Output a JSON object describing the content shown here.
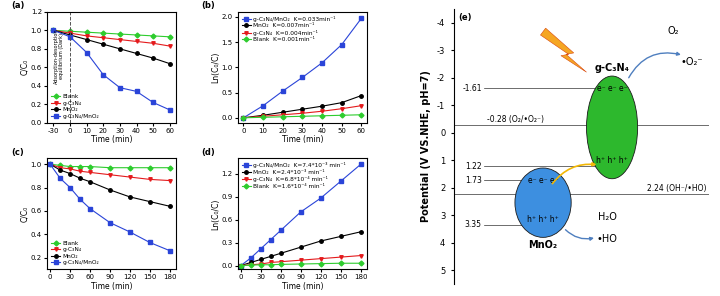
{
  "chart_data": [
    {
      "type": "line",
      "panel_label": "(a)",
      "x_label": "Time (min)",
      "y_label": "C/C₀",
      "categories": [
        "-30",
        "0",
        "10",
        "20",
        "30",
        "40",
        "50",
        "60"
      ],
      "ylim": [
        0,
        1.2
      ],
      "yticks": [
        {
          "value": 0,
          "label": "0.0"
        },
        0.2,
        0.4,
        0.6,
        0.8,
        {
          "value": 1,
          "label": "1.0"
        },
        1.2
      ],
      "legend": "lower left",
      "reference_line": {
        "x": "0",
        "line_style": "dashed",
        "text": "Adsorption-desorption\nequilibrium (Dark)"
      },
      "series": [
        {
          "name": "Blank",
          "color": "#2ecc2e",
          "marker": "diamond",
          "values": [
            1.0,
            0.99,
            0.98,
            0.97,
            0.96,
            0.95,
            0.94,
            0.93
          ]
        },
        {
          "name": "g-C₃N₄",
          "color": "#e41a1c",
          "marker": "triangle_down",
          "values": [
            1.0,
            0.97,
            0.94,
            0.92,
            0.9,
            0.88,
            0.86,
            0.83
          ]
        },
        {
          "name": "MnO₂",
          "color": "#000000",
          "marker": "circle",
          "values": [
            1.0,
            0.95,
            0.9,
            0.85,
            0.8,
            0.75,
            0.7,
            0.64
          ]
        },
        {
          "name": "g-C₃N₄/MnO₂",
          "color": "#2a44d8",
          "marker": "square",
          "values": [
            1.0,
            0.93,
            0.76,
            0.52,
            0.38,
            0.34,
            0.22,
            0.14
          ]
        }
      ]
    },
    {
      "type": "line",
      "panel_label": "(b)",
      "x_label": "Time (min)",
      "y_label": "Ln(C₀/C)",
      "x": [
        0,
        10,
        20,
        30,
        40,
        50,
        60
      ],
      "xlim": [
        -3,
        63
      ],
      "xticks": [
        0,
        10,
        20,
        30,
        40,
        50,
        60
      ],
      "ylim": [
        -0.1,
        2.1
      ],
      "yticks": [
        {
          "value": 0,
          "label": "0.0"
        },
        0.5,
        {
          "value": 1,
          "label": "1.0"
        },
        1.5,
        {
          "value": 2,
          "label": "2.0"
        }
      ],
      "legend": "upper left",
      "series": [
        {
          "name": "g-C₃N₄/MnO₂  K=0.033min⁻¹",
          "color": "#2a44d8",
          "marker": "square",
          "values": [
            0,
            0.24,
            0.53,
            0.8,
            1.09,
            1.45,
            1.97
          ]
        },
        {
          "name": "MnO₂  K=0.007min⁻¹",
          "color": "#000000",
          "marker": "circle",
          "values": [
            0,
            0.05,
            0.11,
            0.17,
            0.23,
            0.3,
            0.44
          ]
        },
        {
          "name": "g-C₃N₄  K=0.004min⁻¹",
          "color": "#e41a1c",
          "marker": "triangle_down",
          "values": [
            0,
            0.03,
            0.06,
            0.09,
            0.13,
            0.18,
            0.24
          ]
        },
        {
          "name": "Blank  K=0.001min⁻¹",
          "color": "#2ecc2e",
          "marker": "diamond",
          "values": [
            0,
            0.01,
            0.02,
            0.03,
            0.04,
            0.05,
            0.06
          ]
        }
      ]
    },
    {
      "type": "line",
      "panel_label": "(c)",
      "x_label": "Time (min)",
      "y_label": "C/C₀",
      "x": [
        0,
        15,
        30,
        45,
        60,
        90,
        120,
        150,
        180
      ],
      "xlim": [
        -5,
        190
      ],
      "xticks": [
        0,
        30,
        60,
        90,
        120,
        150,
        180
      ],
      "ylim": [
        0.1,
        1.05
      ],
      "yticks": [
        0.2,
        0.4,
        0.6,
        0.8,
        {
          "value": 1,
          "label": "1.0"
        }
      ],
      "legend": "lower left",
      "series": [
        {
          "name": "Blank",
          "color": "#2ecc2e",
          "marker": "diamond",
          "values": [
            1.0,
            0.99,
            0.98,
            0.98,
            0.98,
            0.97,
            0.97,
            0.97,
            0.97
          ]
        },
        {
          "name": "g-C₃N₄",
          "color": "#e41a1c",
          "marker": "triangle_down",
          "values": [
            1.0,
            0.97,
            0.96,
            0.94,
            0.93,
            0.91,
            0.89,
            0.87,
            0.86
          ]
        },
        {
          "name": "MnO₂",
          "color": "#000000",
          "marker": "circle",
          "values": [
            1.0,
            0.95,
            0.92,
            0.88,
            0.85,
            0.78,
            0.72,
            0.68,
            0.64
          ]
        },
        {
          "name": "g-C₃N₄/MnO₂",
          "color": "#2a44d8",
          "marker": "square",
          "values": [
            1.0,
            0.88,
            0.8,
            0.7,
            0.62,
            0.5,
            0.42,
            0.33,
            0.26
          ]
        }
      ]
    },
    {
      "type": "line",
      "panel_label": "(d)",
      "x_label": "Time (min)",
      "y_label": "Ln(C₀/C)",
      "x": [
        0,
        15,
        30,
        45,
        60,
        90,
        120,
        150,
        180
      ],
      "xlim": [
        -5,
        190
      ],
      "xticks": [
        0,
        30,
        60,
        90,
        120,
        150,
        180
      ],
      "ylim": [
        -0.05,
        1.4
      ],
      "yticks": [
        {
          "value": 0,
          "label": "0.0"
        },
        0.3,
        0.6,
        0.9,
        1.2
      ],
      "legend": "upper left",
      "series": [
        {
          "name": "g-C₃N₄/MnO₂  K=7.4*10⁻³ min⁻¹",
          "color": "#2a44d8",
          "marker": "square",
          "values": [
            0,
            0.1,
            0.22,
            0.34,
            0.46,
            0.7,
            0.88,
            1.1,
            1.32
          ]
        },
        {
          "name": "MnO₂  K=2.4*10⁻³ min⁻¹",
          "color": "#000000",
          "marker": "circle",
          "values": [
            0,
            0.04,
            0.08,
            0.12,
            0.16,
            0.24,
            0.32,
            0.38,
            0.44
          ]
        },
        {
          "name": "g-C₃N₄  K=6.8*10⁻⁴ min⁻¹",
          "color": "#e41a1c",
          "marker": "triangle_down",
          "values": [
            0,
            0.01,
            0.02,
            0.04,
            0.05,
            0.07,
            0.09,
            0.11,
            0.13
          ]
        },
        {
          "name": "Blank  K=1.6*10⁻⁴ min⁻¹",
          "color": "#2ecc2e",
          "marker": "diamond",
          "values": [
            0,
            0.005,
            0.01,
            0.01,
            0.015,
            0.02,
            0.025,
            0.03,
            0.03
          ]
        }
      ]
    },
    {
      "type": "band_diagram",
      "panel_label": "(e)",
      "y_label": "Potential (V VS.NHE, pH=7)",
      "ylim": [
        5.5,
        -4.5
      ],
      "yticks": [
        -4,
        -3,
        -2,
        -1,
        0,
        1,
        2,
        3,
        4,
        5
      ],
      "bands": [
        {
          "name": "g-C₃N₄",
          "cb": -1.61,
          "vb": 1.22,
          "cb_label": "-1.61",
          "vb_label": "1.22",
          "color": "#2db82d"
        },
        {
          "name": "MnO₂",
          "cb": 1.73,
          "vb": 3.35,
          "cb_label": "1.73",
          "vb_label": "3.35",
          "color": "#3d8fe0"
        }
      ],
      "levels": [
        {
          "value": -0.28,
          "label": "-0.28 (O₂/•O₂⁻)"
        },
        {
          "value": 2.24,
          "label": "2.24 (OH⁻/•HO)"
        }
      ],
      "electrons": "e⁻ e⁻ e⁻",
      "holes": "h⁺ h⁺ h⁺",
      "reactions": [
        {
          "from": "O₂",
          "to": "•O₂⁻"
        },
        {
          "from": "H₂O",
          "to": "•HO"
        }
      ]
    }
  ]
}
